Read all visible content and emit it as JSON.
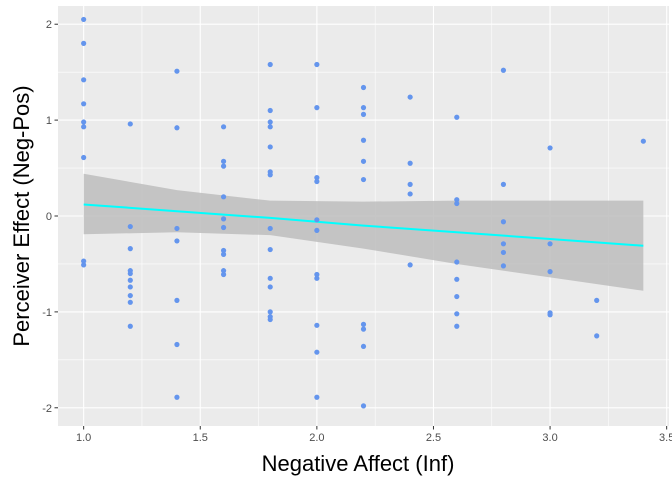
{
  "chart_data": {
    "type": "scatter",
    "xlabel": "Negative Affect (Inf)",
    "ylabel": "Perceiver Effect (Neg-Pos)",
    "xlim": [
      0.89,
      3.51
    ],
    "ylim": [
      -2.19,
      2.19
    ],
    "x_ticks": [
      1.0,
      1.5,
      2.0,
      2.5,
      3.0,
      3.5
    ],
    "x_tick_labels": [
      "1.0",
      "1.5",
      "2.0",
      "2.5",
      "3.0",
      "3.5"
    ],
    "y_ticks": [
      -2,
      -1,
      0,
      1,
      2
    ],
    "y_tick_labels": [
      "-2",
      "-1",
      "0",
      "1",
      "2"
    ],
    "grid": true,
    "colors": {
      "panel_background": "#ebebeb",
      "grid": "#ffffff",
      "points": "#6495ed",
      "trend_line": "#00ffff",
      "confidence_band": "#bdbdbd"
    },
    "points": [
      {
        "x": 1.0,
        "y": 2.05
      },
      {
        "x": 1.0,
        "y": 1.8
      },
      {
        "x": 1.0,
        "y": 1.42
      },
      {
        "x": 1.0,
        "y": 1.17
      },
      {
        "x": 1.0,
        "y": 0.98
      },
      {
        "x": 1.0,
        "y": 0.93
      },
      {
        "x": 1.0,
        "y": 0.61
      },
      {
        "x": 1.0,
        "y": -0.47
      },
      {
        "x": 1.0,
        "y": -0.51
      },
      {
        "x": 1.2,
        "y": 0.96
      },
      {
        "x": 1.2,
        "y": -0.11
      },
      {
        "x": 1.2,
        "y": -0.34
      },
      {
        "x": 1.2,
        "y": -0.57
      },
      {
        "x": 1.2,
        "y": -0.6
      },
      {
        "x": 1.2,
        "y": -0.67
      },
      {
        "x": 1.2,
        "y": -0.74
      },
      {
        "x": 1.2,
        "y": -0.83
      },
      {
        "x": 1.2,
        "y": -0.9
      },
      {
        "x": 1.2,
        "y": -1.15
      },
      {
        "x": 1.4,
        "y": 1.51
      },
      {
        "x": 1.4,
        "y": 0.92
      },
      {
        "x": 1.4,
        "y": -0.13
      },
      {
        "x": 1.4,
        "y": -0.26
      },
      {
        "x": 1.4,
        "y": -0.88
      },
      {
        "x": 1.4,
        "y": -1.34
      },
      {
        "x": 1.4,
        "y": -1.89
      },
      {
        "x": 1.6,
        "y": 0.93
      },
      {
        "x": 1.6,
        "y": 0.57
      },
      {
        "x": 1.6,
        "y": 0.52
      },
      {
        "x": 1.6,
        "y": 0.2
      },
      {
        "x": 1.6,
        "y": -0.03
      },
      {
        "x": 1.6,
        "y": -0.12
      },
      {
        "x": 1.6,
        "y": -0.36
      },
      {
        "x": 1.6,
        "y": -0.4
      },
      {
        "x": 1.6,
        "y": -0.57
      },
      {
        "x": 1.6,
        "y": -0.61
      },
      {
        "x": 1.8,
        "y": 1.58
      },
      {
        "x": 1.8,
        "y": 1.1
      },
      {
        "x": 1.8,
        "y": 0.98
      },
      {
        "x": 1.8,
        "y": 0.93
      },
      {
        "x": 1.8,
        "y": 0.72
      },
      {
        "x": 1.8,
        "y": 0.46
      },
      {
        "x": 1.8,
        "y": 0.43
      },
      {
        "x": 1.8,
        "y": -0.13
      },
      {
        "x": 1.8,
        "y": -0.35
      },
      {
        "x": 1.8,
        "y": -0.65
      },
      {
        "x": 1.8,
        "y": -0.74
      },
      {
        "x": 1.8,
        "y": -1.0
      },
      {
        "x": 1.8,
        "y": -1.05
      },
      {
        "x": 1.8,
        "y": -1.08
      },
      {
        "x": 2.0,
        "y": 1.58
      },
      {
        "x": 2.0,
        "y": 1.13
      },
      {
        "x": 2.0,
        "y": 0.4
      },
      {
        "x": 2.0,
        "y": 0.36
      },
      {
        "x": 2.0,
        "y": -0.04
      },
      {
        "x": 2.0,
        "y": -0.15
      },
      {
        "x": 2.0,
        "y": -0.61
      },
      {
        "x": 2.0,
        "y": -0.65
      },
      {
        "x": 2.0,
        "y": -1.14
      },
      {
        "x": 2.0,
        "y": -1.42
      },
      {
        "x": 2.0,
        "y": -1.89
      },
      {
        "x": 2.2,
        "y": 1.34
      },
      {
        "x": 2.2,
        "y": 1.13
      },
      {
        "x": 2.2,
        "y": 1.06
      },
      {
        "x": 2.2,
        "y": 0.79
      },
      {
        "x": 2.2,
        "y": 0.57
      },
      {
        "x": 2.2,
        "y": 0.38
      },
      {
        "x": 2.2,
        "y": -1.13
      },
      {
        "x": 2.2,
        "y": -1.18
      },
      {
        "x": 2.2,
        "y": -1.36
      },
      {
        "x": 2.2,
        "y": -1.98
      },
      {
        "x": 2.4,
        "y": 1.24
      },
      {
        "x": 2.4,
        "y": 0.55
      },
      {
        "x": 2.4,
        "y": 0.33
      },
      {
        "x": 2.4,
        "y": 0.23
      },
      {
        "x": 2.4,
        "y": -0.51
      },
      {
        "x": 2.6,
        "y": 1.03
      },
      {
        "x": 2.6,
        "y": 0.17
      },
      {
        "x": 2.6,
        "y": 0.13
      },
      {
        "x": 2.6,
        "y": -0.48
      },
      {
        "x": 2.6,
        "y": -0.66
      },
      {
        "x": 2.6,
        "y": -0.84
      },
      {
        "x": 2.6,
        "y": -1.02
      },
      {
        "x": 2.6,
        "y": -1.15
      },
      {
        "x": 2.8,
        "y": 1.52
      },
      {
        "x": 2.8,
        "y": 0.33
      },
      {
        "x": 2.8,
        "y": -0.06
      },
      {
        "x": 2.8,
        "y": -0.29
      },
      {
        "x": 2.8,
        "y": -0.38
      },
      {
        "x": 2.8,
        "y": -0.52
      },
      {
        "x": 3.0,
        "y": 0.71
      },
      {
        "x": 3.0,
        "y": -0.29
      },
      {
        "x": 3.0,
        "y": -0.58
      },
      {
        "x": 3.0,
        "y": -1.01
      },
      {
        "x": 3.0,
        "y": -1.03
      },
      {
        "x": 3.2,
        "y": -0.88
      },
      {
        "x": 3.2,
        "y": -1.25
      },
      {
        "x": 3.4,
        "y": 0.78
      }
    ],
    "trend": {
      "x": [
        1.0,
        1.4,
        1.8,
        2.2,
        2.6,
        3.0,
        3.4
      ],
      "y": [
        0.12,
        0.05,
        -0.02,
        -0.1,
        -0.17,
        -0.24,
        -0.31
      ],
      "lower": [
        -0.19,
        -0.17,
        -0.2,
        -0.34,
        -0.5,
        -0.64,
        -0.78
      ],
      "upper": [
        0.44,
        0.27,
        0.16,
        0.15,
        0.16,
        0.16,
        0.16
      ]
    }
  }
}
